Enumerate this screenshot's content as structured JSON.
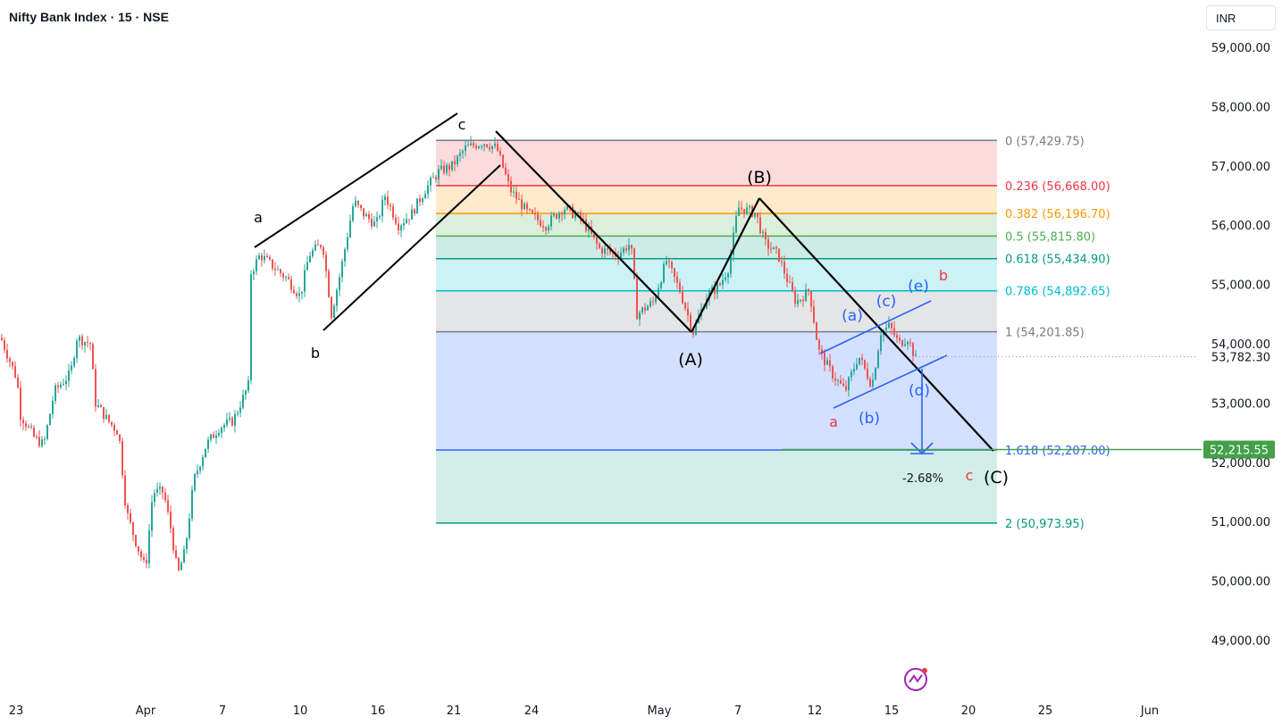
{
  "header": {
    "title": "Nifty Bank Index · 15 · NSE",
    "currency": "INR"
  },
  "colors": {
    "up": "#26a69a",
    "down": "#ef5350",
    "wave_black": "#000000",
    "wave_blue": "#2962ff",
    "wave_red": "#f23645",
    "axis_text": "#131722",
    "price_tag": "#43a047"
  },
  "icons": [
    "tradingview-logo-icon",
    "arrow-down-icon"
  ],
  "chart_data": {
    "type": "candlestick",
    "title": "Nifty Bank Index · 15 · NSE",
    "y_ticks": [
      59000,
      58000,
      57000,
      56000,
      55000,
      54000,
      53000,
      52000,
      51000,
      50000,
      49000
    ],
    "y_tick_labels": [
      "59,000.00",
      "58,000.00",
      "57,000.00",
      "56,000.00",
      "55,000.00",
      "54,000.00",
      "53,000.00",
      "52,000.00",
      "51,000.00",
      "50,000.00",
      "49,000.00"
    ],
    "x_tick_labels": [
      "23",
      "Apr",
      "7",
      "10",
      "16",
      "21",
      "24",
      "May",
      "7",
      "12",
      "15",
      "20",
      "25",
      "Jun"
    ],
    "price_markers": [
      {
        "label": "53,782.30",
        "value": 53782.3
      },
      {
        "label": "52,215.55",
        "value": 52215.55
      }
    ],
    "fibonacci": [
      {
        "label": "0 (57,429.75)",
        "value": 57429.75,
        "color": "#787b86",
        "fill": "rgba(242,54,69,0.18)"
      },
      {
        "label": "0.236 (56,668.00)",
        "value": 56668.0,
        "color": "#f23645",
        "fill": "rgba(255,152,0,0.20)"
      },
      {
        "label": "0.382 (56,196.70)",
        "value": 56196.7,
        "color": "#ff9800",
        "fill": "rgba(76,175,80,0.20)"
      },
      {
        "label": "0.5 (55,815.80)",
        "value": 55815.8,
        "color": "#4caf50",
        "fill": "rgba(8,153,129,0.20)"
      },
      {
        "label": "0.618 (55,434.90)",
        "value": 55434.9,
        "color": "#089981",
        "fill": "rgba(0,188,212,0.20)"
      },
      {
        "label": "0.786 (54,892.65)",
        "value": 54892.65,
        "color": "#00bcd4",
        "fill": "rgba(120,123,134,0.20)"
      },
      {
        "label": "1 (54,201.85)",
        "value": 54201.85,
        "color": "#787b86",
        "fill": "rgba(41,98,255,0.20)"
      },
      {
        "label": "1.618 (52,207.00)",
        "value": 52207.0,
        "color": "#2962ff",
        "fill": "rgba(8,153,129,0.18)"
      },
      {
        "label": "2 (50,973.95)",
        "value": 50973.95,
        "color": "#089981",
        "fill": null
      }
    ],
    "annotations": {
      "measure_label": "-2.68%",
      "wave_labels_black": [
        "a",
        "b",
        "c",
        "(A)",
        "(B)",
        "(C)"
      ],
      "wave_labels_blue": [
        "(a)",
        "(b)",
        "(c)",
        "(d)",
        "(e)"
      ],
      "wave_labels_red": [
        "a",
        "b",
        "c"
      ]
    },
    "price_path": [
      [
        54100,
        53800,
        53300,
        53900,
        53600,
        52800,
        52300,
        52700,
        53600,
        53300,
        54100,
        54000,
        53900,
        54200,
        53900,
        53400,
        53800,
        53600,
        53200,
        52500,
        52700,
        52900,
        52500,
        52800,
        53500,
        53700,
        52700,
        51900,
        51300,
        51000,
        50700,
        50200,
        50600,
        51300,
        51500,
        51200,
        51300,
        51700,
        51100,
        50700,
        50000,
        50400,
        51500,
        52200,
        52700,
        52300,
        52700,
        53000,
        53400,
        53100,
        53300,
        53500
      ]
    ],
    "x_range": [
      0,
      1338
    ],
    "ylim": [
      48500,
      59500
    ]
  }
}
